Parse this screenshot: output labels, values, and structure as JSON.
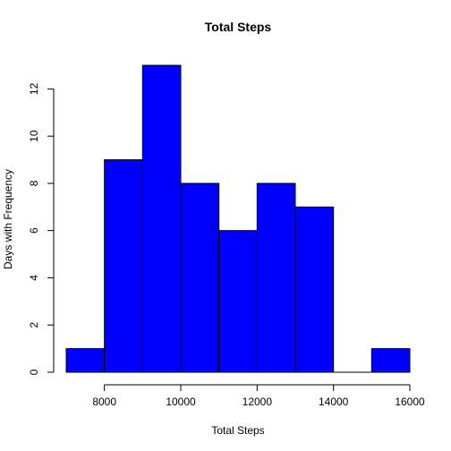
{
  "chart_data": {
    "type": "bar",
    "title": "Total Steps",
    "xlabel": "Total Steps",
    "ylabel": "Days with Frequency",
    "bar_color": "#0000ff",
    "bins": [
      {
        "from": 7000,
        "to": 8000,
        "value": 1
      },
      {
        "from": 8000,
        "to": 9000,
        "value": 9
      },
      {
        "from": 9000,
        "to": 10000,
        "value": 13
      },
      {
        "from": 10000,
        "to": 11000,
        "value": 8
      },
      {
        "from": 11000,
        "to": 12000,
        "value": 6
      },
      {
        "from": 12000,
        "to": 13000,
        "value": 8
      },
      {
        "from": 13000,
        "to": 14000,
        "value": 7
      },
      {
        "from": 14000,
        "to": 15000,
        "value": 0
      },
      {
        "from": 15000,
        "to": 16000,
        "value": 1
      }
    ],
    "xlim": [
      7000,
      16000
    ],
    "ylim": [
      0,
      13
    ],
    "x_ticks": [
      8000,
      10000,
      12000,
      14000,
      16000
    ],
    "y_ticks": [
      0,
      2,
      4,
      6,
      8,
      10,
      12
    ],
    "grid": false
  }
}
